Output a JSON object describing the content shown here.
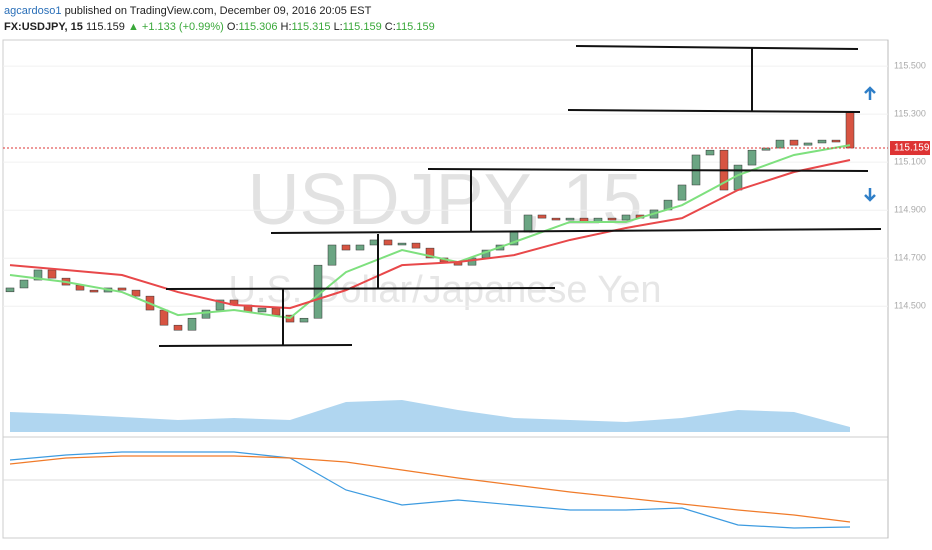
{
  "header": {
    "author": "agcardoso1",
    "published": "published on TradingView.com, December 09, 2016 20:05 EST",
    "symbol": "FX:USDJPY, 15",
    "change": "▲ +1.133 (+0.99%)",
    "open_label": "O:",
    "open": "115.306",
    "high_label": "H:",
    "high": "115.315",
    "low_label": "L:",
    "low": "115.159",
    "close_label": "C:",
    "close": "115.159"
  },
  "chart_data": {
    "type": "candlestick",
    "watermark": "USDJPY, 15",
    "watermark_subtitle": "U.S. Dollar/Japanese Yen",
    "last": 115.159,
    "up_color": "#6ba583",
    "down_color": "#d75442",
    "ylim": [
      113.976,
      115.609
    ],
    "yticks": [
      {
        "value": 115.5,
        "label": "115.500"
      },
      {
        "value": 115.3,
        "label": "115.300"
      },
      {
        "value": 115.1,
        "label": "115.100"
      },
      {
        "value": 114.9,
        "label": "114.900"
      },
      {
        "value": 114.7,
        "label": "114.700"
      },
      {
        "value": 114.5,
        "label": "114.500"
      }
    ],
    "open": [
      114.56,
      114.576,
      114.609,
      114.651,
      114.617,
      114.588,
      114.567,
      114.559,
      114.576,
      114.567,
      114.542,
      114.484,
      114.421,
      114.4,
      114.45,
      114.484,
      114.526,
      114.505,
      114.476,
      114.492,
      114.463,
      114.434,
      114.45,
      114.671,
      114.755,
      114.734,
      114.755,
      114.776,
      114.755,
      114.763,
      114.742,
      114.701,
      114.684,
      114.671,
      114.701,
      114.734,
      114.755,
      114.809,
      114.88,
      114.867,
      114.859,
      114.867,
      114.851,
      114.867,
      114.859,
      114.88,
      114.867,
      114.901,
      114.942,
      115.005,
      115.13,
      115.15,
      114.984,
      115.088,
      115.15,
      115.159,
      115.192,
      115.171,
      115.18,
      115.192,
      115.306
    ],
    "close": [
      114.576,
      114.609,
      114.651,
      114.617,
      114.588,
      114.567,
      114.559,
      114.576,
      114.567,
      114.542,
      114.484,
      114.421,
      114.4,
      114.45,
      114.484,
      114.526,
      114.505,
      114.476,
      114.492,
      114.463,
      114.434,
      114.45,
      114.671,
      114.755,
      114.734,
      114.755,
      114.776,
      114.755,
      114.763,
      114.742,
      114.701,
      114.684,
      114.671,
      114.701,
      114.734,
      114.755,
      114.809,
      114.88,
      114.867,
      114.859,
      114.867,
      114.851,
      114.867,
      114.859,
      114.88,
      114.867,
      114.901,
      114.942,
      115.005,
      115.13,
      115.15,
      114.984,
      115.088,
      115.15,
      115.159,
      115.192,
      115.171,
      115.18,
      115.192,
      115.184,
      115.159
    ],
    "ma_x": [
      0,
      4,
      8,
      12,
      16,
      20,
      24,
      28,
      32,
      36,
      40,
      44,
      48,
      52,
      56,
      60
    ],
    "series": [
      {
        "color": "#7ee07e",
        "values": [
          114.63,
          114.601,
          114.559,
          114.463,
          114.484,
          114.451,
          114.642,
          114.734,
          114.684,
          114.767,
          114.851,
          114.851,
          114.921,
          115.046,
          115.13,
          115.171
        ]
      },
      {
        "color": "#e8484a",
        "values": [
          114.671,
          114.651,
          114.63,
          114.559,
          114.505,
          114.492,
          114.567,
          114.671,
          114.684,
          114.713,
          114.776,
          114.826,
          114.867,
          114.984,
          115.059,
          115.109
        ]
      }
    ],
    "volume": {
      "color": "#8fc4ea",
      "vlim": [
        0,
        80
      ],
      "values": [
        20,
        18,
        15,
        12,
        14,
        12,
        30,
        32,
        22,
        14,
        12,
        10,
        14,
        22,
        20,
        5
      ]
    },
    "macd": {
      "mlim": [
        -55,
        35
      ],
      "series": [
        {
          "color": "#3d9be0",
          "values": [
            20,
            25,
            28,
            28,
            28,
            22,
            -10,
            -25,
            -20,
            -25,
            -30,
            -30,
            -28,
            -45,
            -48,
            -47
          ]
        },
        {
          "color": "#f07b2a",
          "values": [
            16,
            22,
            24,
            24,
            24,
            22,
            18,
            10,
            2,
            -5,
            -12,
            -18,
            -24,
            -30,
            -35,
            -42
          ]
        }
      ]
    }
  }
}
